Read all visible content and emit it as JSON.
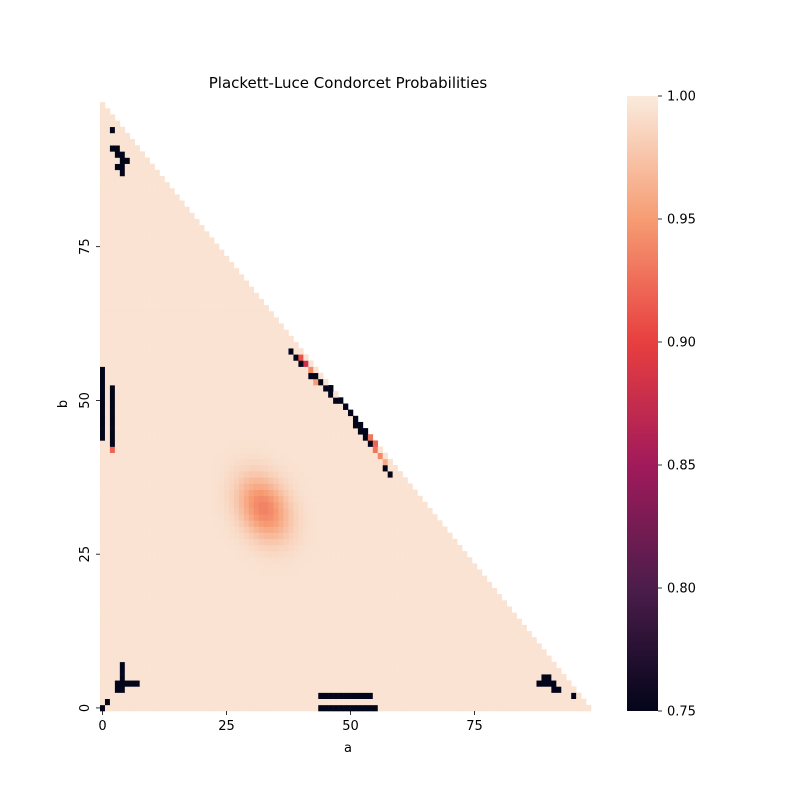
{
  "chart_data": {
    "type": "heatmap",
    "title": "Plackett-Luce Condorcet Probabilities",
    "xlabel": "a",
    "ylabel": "b",
    "x_ticks": [
      0,
      25,
      50,
      75
    ],
    "y_ticks": [
      0,
      25,
      50,
      75
    ],
    "grid_size": 100,
    "domain": "a + b <= 98",
    "colorbar": {
      "min": 0.75,
      "max": 1.0,
      "ticks": [
        "1.00",
        "0.95",
        "0.90",
        "0.85",
        "0.80",
        "0.75"
      ]
    },
    "background_value": 0.995,
    "hotspot": {
      "a": 32.5,
      "b": 32.5,
      "peak_value": 0.935
    },
    "low_cells": [
      [
        2,
        94
      ],
      [
        2,
        91
      ],
      [
        3,
        91
      ],
      [
        3,
        90
      ],
      [
        4,
        90
      ],
      [
        4,
        89
      ],
      [
        5,
        89
      ],
      [
        4,
        88
      ],
      [
        3,
        88
      ],
      [
        4,
        87
      ],
      [
        0,
        55
      ],
      [
        0,
        54
      ],
      [
        0,
        53
      ],
      [
        0,
        52
      ],
      [
        0,
        51
      ],
      [
        0,
        50
      ],
      [
        0,
        49
      ],
      [
        0,
        48
      ],
      [
        0,
        47
      ],
      [
        0,
        46
      ],
      [
        0,
        45
      ],
      [
        0,
        44
      ],
      [
        2,
        52
      ],
      [
        2,
        51
      ],
      [
        2,
        50
      ],
      [
        2,
        49
      ],
      [
        2,
        48
      ],
      [
        2,
        47
      ],
      [
        2,
        46
      ],
      [
        2,
        45
      ],
      [
        2,
        44
      ],
      [
        2,
        43
      ],
      [
        38,
        58
      ],
      [
        39,
        57
      ],
      [
        40,
        56
      ],
      [
        42,
        54
      ],
      [
        43,
        54
      ],
      [
        44,
        53
      ],
      [
        45,
        52
      ],
      [
        46,
        52
      ],
      [
        46,
        51
      ],
      [
        47,
        50
      ],
      [
        48,
        50
      ],
      [
        49,
        49
      ],
      [
        50,
        48
      ],
      [
        51,
        47
      ],
      [
        51,
        46
      ],
      [
        52,
        46
      ],
      [
        52,
        45
      ],
      [
        53,
        45
      ],
      [
        53,
        44
      ],
      [
        54,
        43
      ],
      [
        57,
        39
      ],
      [
        58,
        38
      ],
      [
        4,
        7
      ],
      [
        4,
        6
      ],
      [
        4,
        5
      ],
      [
        3,
        4
      ],
      [
        4,
        4
      ],
      [
        5,
        4
      ],
      [
        6,
        4
      ],
      [
        7,
        4
      ],
      [
        3,
        3
      ],
      [
        4,
        3
      ],
      [
        1,
        1
      ],
      [
        0,
        0
      ],
      [
        44,
        2
      ],
      [
        45,
        2
      ],
      [
        46,
        2
      ],
      [
        47,
        2
      ],
      [
        48,
        2
      ],
      [
        49,
        2
      ],
      [
        50,
        2
      ],
      [
        51,
        2
      ],
      [
        52,
        2
      ],
      [
        53,
        2
      ],
      [
        54,
        2
      ],
      [
        44,
        0
      ],
      [
        45,
        0
      ],
      [
        46,
        0
      ],
      [
        47,
        0
      ],
      [
        48,
        0
      ],
      [
        49,
        0
      ],
      [
        50,
        0
      ],
      [
        51,
        0
      ],
      [
        52,
        0
      ],
      [
        53,
        0
      ],
      [
        54,
        0
      ],
      [
        55,
        0
      ],
      [
        89,
        5
      ],
      [
        90,
        5
      ],
      [
        88,
        4
      ],
      [
        89,
        4
      ],
      [
        90,
        4
      ],
      [
        91,
        4
      ],
      [
        91,
        3
      ],
      [
        92,
        3
      ],
      [
        95,
        2
      ]
    ],
    "mid_cells": [
      [
        40,
        57,
        0.91
      ],
      [
        41,
        56,
        0.88
      ],
      [
        42,
        55,
        0.94
      ],
      [
        43,
        53,
        0.95
      ],
      [
        50,
        49,
        0.93
      ],
      [
        54,
        44,
        0.93
      ],
      [
        55,
        43,
        0.92
      ],
      [
        55,
        42,
        0.93
      ],
      [
        56,
        41,
        0.94
      ],
      [
        57,
        40,
        0.96
      ],
      [
        2,
        42,
        0.92
      ]
    ]
  }
}
